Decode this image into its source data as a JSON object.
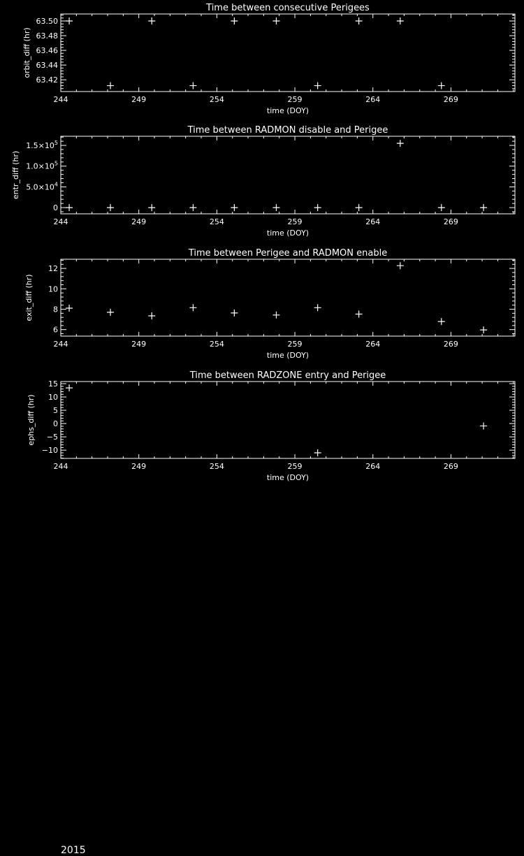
{
  "colors": {
    "background": "#000000",
    "foreground": "#ffffff"
  },
  "year_label": "2015",
  "chart_data": [
    {
      "type": "scatter",
      "title": "Time between consecutive Perigees",
      "xlabel": "time (DOY)",
      "ylabel": "orbit_diff (hr)",
      "xlim": [
        244,
        273.1
      ],
      "ylim": [
        63.404,
        63.5095
      ],
      "xticks": [
        "244",
        "249",
        "254",
        "259",
        "264",
        "269"
      ],
      "yticks": [
        {
          "v": 63.42,
          "label": "63.42"
        },
        {
          "v": 63.44,
          "label": "63.44"
        },
        {
          "v": 63.46,
          "label": "63.46"
        },
        {
          "v": 63.48,
          "label": "63.48"
        },
        {
          "v": 63.5,
          "label": "63.50"
        }
      ],
      "marker": "plus",
      "x": [
        244.54,
        247.18,
        249.83,
        252.48,
        255.12,
        257.81,
        260.46,
        263.1,
        265.75,
        268.39
      ],
      "y": [
        63.5,
        63.412,
        63.5,
        63.412,
        63.5,
        63.5,
        63.412,
        63.5,
        63.5,
        63.412
      ]
    },
    {
      "type": "scatter",
      "title": "Time between RADMON disable and Perigee",
      "xlabel": "time (DOY)",
      "ylabel": "entr_diff (hr)",
      "xlim": [
        244,
        273.1
      ],
      "ylim": [
        -15000,
        172000
      ],
      "xticks": [
        "244",
        "249",
        "254",
        "259",
        "264",
        "269"
      ],
      "yticks": [
        {
          "v": 0,
          "label": "0",
          "exp": ""
        },
        {
          "v": 50000,
          "label": "5.0×10",
          "exp": "4"
        },
        {
          "v": 100000,
          "label": "1.0×10",
          "exp": "5"
        },
        {
          "v": 150000,
          "label": "1.5×10",
          "exp": "5"
        }
      ],
      "marker": "plus",
      "x": [
        244.54,
        247.18,
        249.83,
        252.48,
        255.12,
        257.81,
        260.46,
        263.1,
        265.75,
        268.39,
        271.09
      ],
      "y": [
        0,
        0,
        0,
        0,
        0,
        0,
        0,
        0,
        155000,
        0,
        0
      ]
    },
    {
      "type": "scatter",
      "title": "Time between Perigee and RADMON enable",
      "xlabel": "time (DOY)",
      "ylabel": "exit_diff (hr)",
      "xlim": [
        244,
        273.1
      ],
      "ylim": [
        5.36,
        12.9
      ],
      "xticks": [
        "244",
        "249",
        "254",
        "259",
        "264",
        "269"
      ],
      "yticks": [
        {
          "v": 6,
          "label": "6"
        },
        {
          "v": 8,
          "label": "8"
        },
        {
          "v": 10,
          "label": "10"
        },
        {
          "v": 12,
          "label": "12"
        }
      ],
      "marker": "plus",
      "x": [
        244.54,
        247.18,
        249.83,
        252.48,
        255.12,
        257.81,
        260.46,
        263.1,
        265.75,
        268.39,
        271.09
      ],
      "y": [
        8.1,
        7.7,
        7.35,
        8.15,
        7.63,
        7.43,
        8.15,
        7.52,
        12.27,
        6.79,
        5.97
      ]
    },
    {
      "type": "scatter",
      "title": "Time between RADZONE entry and Perigee",
      "xlabel": "time (DOY)",
      "ylabel": "ephs_diff (hr)",
      "xlim": [
        244,
        273.1
      ],
      "ylim": [
        -13.1,
        15.8
      ],
      "xticks": [
        "244",
        "249",
        "254",
        "259",
        "264",
        "269"
      ],
      "yticks": [
        {
          "v": -10,
          "label": "−10"
        },
        {
          "v": -5,
          "label": "−5"
        },
        {
          "v": 0,
          "label": "0"
        },
        {
          "v": 5,
          "label": "5"
        },
        {
          "v": 10,
          "label": "10"
        },
        {
          "v": 15,
          "label": "15"
        }
      ],
      "marker": "plus",
      "x": [
        244.54,
        260.46,
        271.09
      ],
      "y": [
        13.4,
        -11.0,
        -0.9
      ]
    }
  ]
}
